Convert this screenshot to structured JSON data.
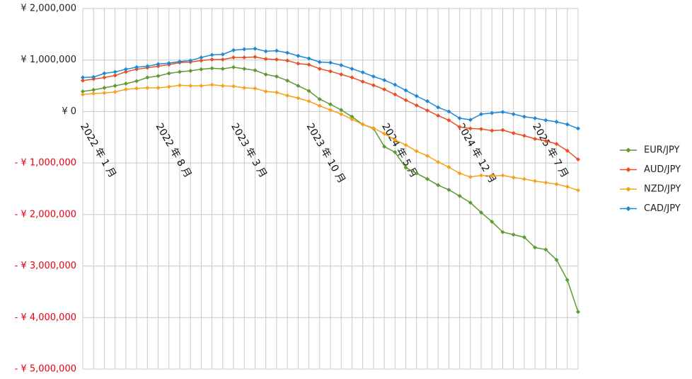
{
  "chart_data": {
    "type": "line",
    "categories": [
      "2022 年 1 月",
      null,
      null,
      null,
      null,
      null,
      null,
      "2022 年 8 月",
      null,
      null,
      null,
      null,
      null,
      null,
      "2023 年 3 月",
      null,
      null,
      null,
      null,
      null,
      null,
      "2023 年 10 月",
      null,
      null,
      null,
      null,
      null,
      null,
      "2024 年 5 月",
      null,
      null,
      null,
      null,
      null,
      null,
      "2024 年 12 月",
      null,
      null,
      null,
      null,
      null,
      null,
      "2025 年 7 月",
      null,
      null,
      null,
      null
    ],
    "series": [
      {
        "name": "EUR/JPY",
        "color": "#5b9b32",
        "values": [
          390000,
          420000,
          460000,
          500000,
          540000,
          590000,
          660000,
          690000,
          740000,
          770000,
          790000,
          820000,
          840000,
          830000,
          860000,
          830000,
          800000,
          720000,
          680000,
          600000,
          500000,
          400000,
          240000,
          140000,
          30000,
          -100000,
          -250000,
          -330000,
          -680000,
          -790000,
          -1090000,
          -1200000,
          -1310000,
          -1430000,
          -1520000,
          -1640000,
          -1770000,
          -1960000,
          -2140000,
          -2340000,
          -2390000,
          -2440000,
          -2640000,
          -2680000,
          -2880000,
          -3270000,
          -3890000
        ]
      },
      {
        "name": "AUD/JPY",
        "color": "#ea4f24",
        "values": [
          600000,
          630000,
          660000,
          700000,
          770000,
          820000,
          850000,
          880000,
          910000,
          950000,
          960000,
          990000,
          1010000,
          1010000,
          1050000,
          1050000,
          1060000,
          1020000,
          1010000,
          990000,
          930000,
          910000,
          830000,
          780000,
          720000,
          660000,
          580000,
          510000,
          430000,
          330000,
          220000,
          120000,
          20000,
          -80000,
          -170000,
          -300000,
          -330000,
          -340000,
          -370000,
          -360000,
          -420000,
          -470000,
          -530000,
          -570000,
          -630000,
          -760000,
          -930000
        ]
      },
      {
        "name": "NZD/JPY",
        "color": "#f7a11a",
        "values": [
          330000,
          350000,
          360000,
          380000,
          430000,
          450000,
          460000,
          460000,
          480000,
          510000,
          500000,
          500000,
          520000,
          500000,
          490000,
          460000,
          450000,
          390000,
          370000,
          310000,
          260000,
          200000,
          110000,
          30000,
          -50000,
          -150000,
          -250000,
          -320000,
          -430000,
          -550000,
          -650000,
          -770000,
          -860000,
          -980000,
          -1080000,
          -1200000,
          -1270000,
          -1240000,
          -1250000,
          -1240000,
          -1280000,
          -1310000,
          -1350000,
          -1380000,
          -1410000,
          -1460000,
          -1530000
        ]
      },
      {
        "name": "CAD/JPY",
        "color": "#1e88d4",
        "values": [
          660000,
          670000,
          740000,
          770000,
          820000,
          860000,
          880000,
          920000,
          940000,
          970000,
          990000,
          1050000,
          1100000,
          1110000,
          1190000,
          1210000,
          1220000,
          1170000,
          1180000,
          1140000,
          1080000,
          1030000,
          960000,
          950000,
          900000,
          830000,
          760000,
          680000,
          610000,
          520000,
          410000,
          300000,
          200000,
          80000,
          0,
          -130000,
          -160000,
          -50000,
          -30000,
          -10000,
          -50000,
          -100000,
          -130000,
          -170000,
          -200000,
          -250000,
          -330000
        ]
      }
    ],
    "ylim": [
      -5000000,
      2000000
    ],
    "yticks": [
      {
        "value": 2000000,
        "label": "¥ 2,000,000"
      },
      {
        "value": 1000000,
        "label": "¥ 1,000,000"
      },
      {
        "value": 0,
        "label": "¥ 0"
      },
      {
        "value": -1000000,
        "label": "- ¥ 1,000,000"
      },
      {
        "value": -2000000,
        "label": "- ¥ 2,000,000"
      },
      {
        "value": -3000000,
        "label": "- ¥ 3,000,000"
      },
      {
        "value": -4000000,
        "label": "- ¥ 4,000,000"
      },
      {
        "value": -5000000,
        "label": "- ¥ 5,000,000"
      }
    ],
    "negative_label_color": "#e60012",
    "grid": true,
    "legend": "right"
  }
}
